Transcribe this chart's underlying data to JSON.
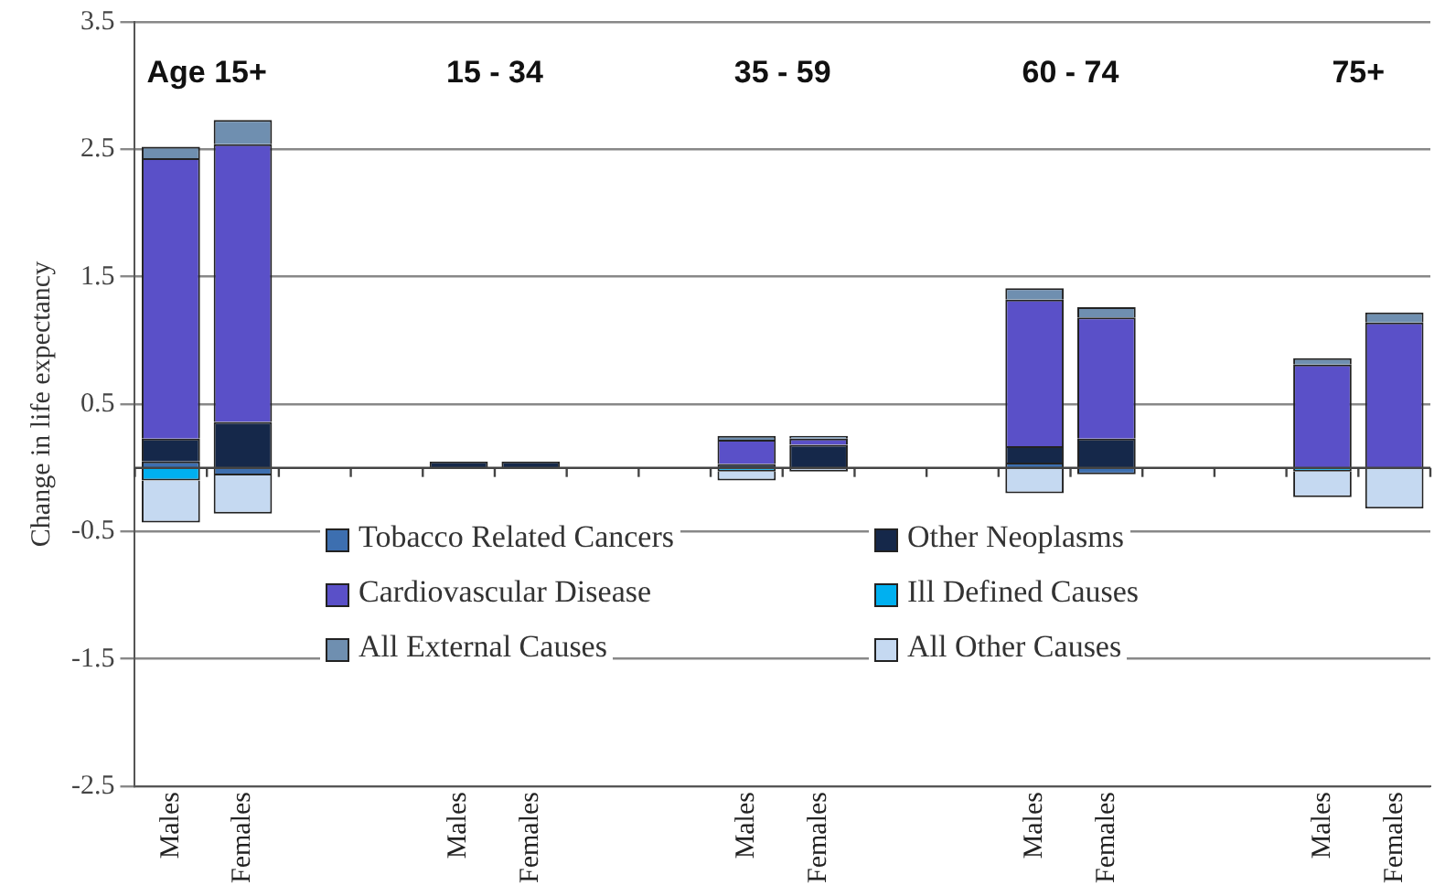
{
  "chart_data": {
    "type": "bar",
    "stacked": true,
    "ylabel": "Change in life expectancy",
    "categories": [
      "Males",
      "Females",
      null,
      null,
      "Males",
      "Females",
      null,
      null,
      "Males",
      "Females",
      null,
      null,
      "Males",
      "Females",
      null,
      null,
      "Males",
      "Females"
    ],
    "series": [
      {
        "name": "Tobacco Related Cancers",
        "color": "#3d6fb0",
        "values": [
          0.05,
          -0.06,
          null,
          null,
          0,
          0,
          null,
          null,
          null,
          0,
          null,
          null,
          0.04,
          -0.05,
          null,
          null,
          0,
          0
        ]
      },
      {
        "name": "Other Neoplasms",
        "color": "#15284a",
        "values": [
          0.18,
          0.36,
          null,
          null,
          0.05,
          0.05,
          null,
          null,
          0.03,
          0.18,
          null,
          null,
          0.13,
          0.23,
          null,
          null,
          0,
          0
        ]
      },
      {
        "name": "Cardiovascular Disease",
        "color": "#5a50c8",
        "values": [
          2.2,
          2.18,
          null,
          null,
          0,
          0,
          null,
          null,
          0.19,
          0.05,
          null,
          null,
          1.15,
          0.95,
          null,
          null,
          0.81,
          1.14
        ]
      },
      {
        "name": "Ill Defined Causes",
        "color": "#00b0f0",
        "values": [
          -0.1,
          0,
          null,
          null,
          0,
          0,
          null,
          null,
          -0.03,
          0,
          null,
          null,
          0,
          0,
          null,
          null,
          -0.03,
          0
        ]
      },
      {
        "name": "All External Causes",
        "color": "#6f8fb0",
        "values": [
          0.09,
          0.19,
          null,
          null,
          0,
          0,
          null,
          null,
          0.03,
          0.02,
          null,
          null,
          0.09,
          0.08,
          null,
          null,
          0.05,
          0.08
        ]
      },
      {
        "name": "All Other Causes",
        "color": "#c5d9f1",
        "values": [
          -0.33,
          -0.3,
          null,
          null,
          0,
          0,
          null,
          null,
          -0.07,
          -0.03,
          null,
          null,
          -0.2,
          0,
          null,
          null,
          -0.2,
          -0.32
        ]
      }
    ],
    "ylim": [
      -2.5,
      3.5
    ],
    "yticks": [
      -2.5,
      -1.5,
      -0.5,
      0.5,
      1.5,
      2.5,
      3.5
    ],
    "grid": "y",
    "legend": "bottom",
    "ref_lines": [
      {
        "axis": "y",
        "value": 0
      }
    ],
    "annotations": [
      "Age 15+",
      "15 - 34",
      "35 - 59",
      "60 - 74",
      "75+"
    ]
  }
}
